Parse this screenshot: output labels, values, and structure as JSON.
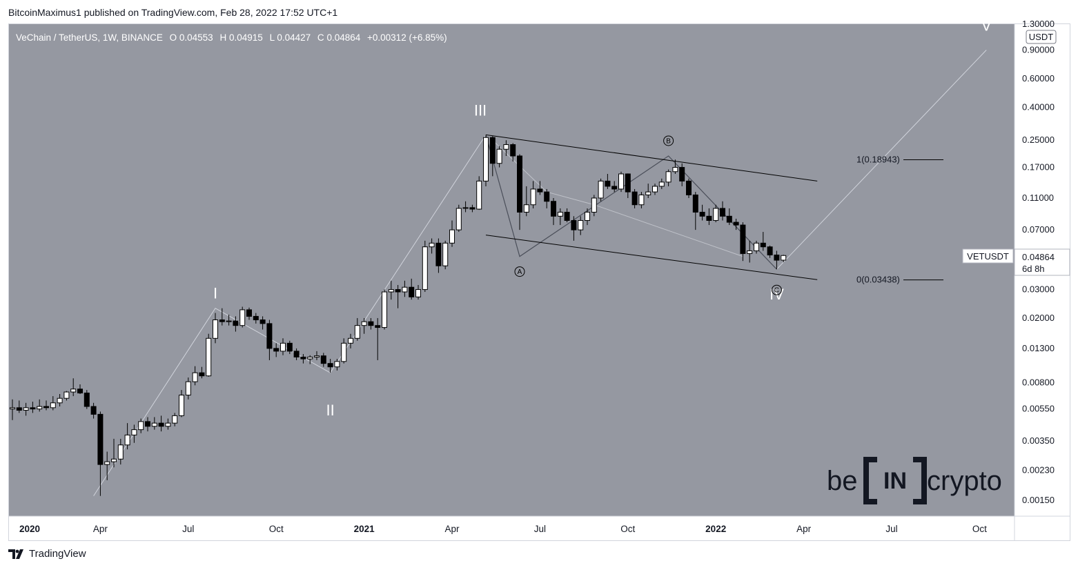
{
  "header": {
    "publisher_line": "BitcoinMaximus1 published on TradingView.com, Feb 28, 2022 17:52 UTC+1"
  },
  "legend": {
    "symbol": "VeChain / TetherUS, 1W, BINANCE",
    "o_label": "O",
    "o_value": "0.04553",
    "h_label": "H",
    "h_value": "0.04915",
    "l_label": "L",
    "l_value": "0.04427",
    "c_label": "C",
    "c_value": "0.04864",
    "change": "+0.00312 (+6.85%)"
  },
  "price_axis": {
    "currency": "USDT",
    "symbol_tag": "VETUSDT",
    "last_price": "0.04864",
    "countdown": "6d 8h"
  },
  "waves": {
    "I": "I",
    "II": "II",
    "III": "III",
    "IV": "IV",
    "V": "V",
    "A": "A",
    "B": "B",
    "C": "C"
  },
  "fib": {
    "level_1": "1(0.18943)",
    "level_0": "0(0.03438)"
  },
  "watermark": {
    "be": "be",
    "in": "IN",
    "crypto": "crypto"
  },
  "footer": {
    "brand": "TradingView"
  },
  "colors": {
    "background": "#9598a1",
    "axis_bg": "#ffffff",
    "bull": "#ffffff",
    "bear": "#000000",
    "grid_text": "#131722"
  },
  "chart_data": {
    "type": "candlestick",
    "title": "VeChain / TetherUS, 1W, BINANCE",
    "y_scale": "log",
    "ylim": [
      0.0012,
      1.3
    ],
    "y_ticks": [
      "1.30000",
      "0.90000",
      "0.60000",
      "0.40000",
      "0.25000",
      "0.17000",
      "0.11000",
      "0.07000",
      "0.04864",
      "0.03000",
      "0.02000",
      "0.01300",
      "0.00800",
      "0.00550",
      "0.00350",
      "0.00230",
      "0.00150"
    ],
    "x_labels": [
      "2020",
      "Apr",
      "Jul",
      "Oct",
      "2021",
      "Apr",
      "Jul",
      "Oct",
      "2022",
      "Apr",
      "Jul",
      "Oct"
    ],
    "x_label_weeks": [
      0,
      13,
      26,
      39,
      52,
      65,
      78,
      91,
      104,
      117,
      130,
      143
    ],
    "candles": [
      {
        "w": 0,
        "o": 0.0055,
        "h": 0.0063,
        "l": 0.0047,
        "c": 0.0056
      },
      {
        "w": 1,
        "o": 0.0056,
        "h": 0.0062,
        "l": 0.0052,
        "c": 0.0054
      },
      {
        "w": 2,
        "o": 0.0054,
        "h": 0.006,
        "l": 0.005,
        "c": 0.0056
      },
      {
        "w": 3,
        "o": 0.0056,
        "h": 0.0061,
        "l": 0.0052,
        "c": 0.0055
      },
      {
        "w": 4,
        "o": 0.0055,
        "h": 0.0063,
        "l": 0.0053,
        "c": 0.0057
      },
      {
        "w": 5,
        "o": 0.0057,
        "h": 0.0062,
        "l": 0.0054,
        "c": 0.0056
      },
      {
        "w": 6,
        "o": 0.0056,
        "h": 0.0066,
        "l": 0.0054,
        "c": 0.006
      },
      {
        "w": 7,
        "o": 0.006,
        "h": 0.0068,
        "l": 0.0057,
        "c": 0.0064
      },
      {
        "w": 8,
        "o": 0.0064,
        "h": 0.0071,
        "l": 0.0062,
        "c": 0.007
      },
      {
        "w": 9,
        "o": 0.007,
        "h": 0.0085,
        "l": 0.0066,
        "c": 0.0073
      },
      {
        "w": 10,
        "o": 0.0073,
        "h": 0.0078,
        "l": 0.0068,
        "c": 0.0069
      },
      {
        "w": 11,
        "o": 0.0069,
        "h": 0.0072,
        "l": 0.0055,
        "c": 0.0057
      },
      {
        "w": 12,
        "o": 0.0057,
        "h": 0.006,
        "l": 0.0048,
        "c": 0.0051
      },
      {
        "w": 13,
        "o": 0.0051,
        "h": 0.0053,
        "l": 0.0016,
        "c": 0.0025
      },
      {
        "w": 14,
        "o": 0.0025,
        "h": 0.003,
        "l": 0.002,
        "c": 0.0026
      },
      {
        "w": 15,
        "o": 0.0026,
        "h": 0.0036,
        "l": 0.0024,
        "c": 0.0027
      },
      {
        "w": 16,
        "o": 0.0027,
        "h": 0.0036,
        "l": 0.0025,
        "c": 0.0033
      },
      {
        "w": 17,
        "o": 0.0033,
        "h": 0.0045,
        "l": 0.0031,
        "c": 0.0038
      },
      {
        "w": 18,
        "o": 0.0038,
        "h": 0.0044,
        "l": 0.0034,
        "c": 0.0041
      },
      {
        "w": 19,
        "o": 0.0041,
        "h": 0.0048,
        "l": 0.0039,
        "c": 0.0046
      },
      {
        "w": 20,
        "o": 0.0046,
        "h": 0.0049,
        "l": 0.004,
        "c": 0.0043
      },
      {
        "w": 21,
        "o": 0.0043,
        "h": 0.0049,
        "l": 0.0041,
        "c": 0.0045
      },
      {
        "w": 22,
        "o": 0.0045,
        "h": 0.005,
        "l": 0.004,
        "c": 0.0043
      },
      {
        "w": 23,
        "o": 0.0043,
        "h": 0.0048,
        "l": 0.0041,
        "c": 0.0045
      },
      {
        "w": 24,
        "o": 0.0045,
        "h": 0.0052,
        "l": 0.0043,
        "c": 0.005
      },
      {
        "w": 25,
        "o": 0.005,
        "h": 0.0072,
        "l": 0.0049,
        "c": 0.0067
      },
      {
        "w": 26,
        "o": 0.0067,
        "h": 0.0086,
        "l": 0.0063,
        "c": 0.0081
      },
      {
        "w": 27,
        "o": 0.0081,
        "h": 0.0101,
        "l": 0.0077,
        "c": 0.0092
      },
      {
        "w": 28,
        "o": 0.0092,
        "h": 0.01,
        "l": 0.0085,
        "c": 0.0088
      },
      {
        "w": 29,
        "o": 0.0088,
        "h": 0.016,
        "l": 0.0087,
        "c": 0.015
      },
      {
        "w": 30,
        "o": 0.015,
        "h": 0.0215,
        "l": 0.014,
        "c": 0.0195
      },
      {
        "w": 31,
        "o": 0.0195,
        "h": 0.023,
        "l": 0.018,
        "c": 0.019
      },
      {
        "w": 32,
        "o": 0.019,
        "h": 0.021,
        "l": 0.018,
        "c": 0.0192
      },
      {
        "w": 33,
        "o": 0.0192,
        "h": 0.0205,
        "l": 0.0165,
        "c": 0.018
      },
      {
        "w": 34,
        "o": 0.018,
        "h": 0.0235,
        "l": 0.0175,
        "c": 0.0225
      },
      {
        "w": 35,
        "o": 0.0225,
        "h": 0.0232,
        "l": 0.0195,
        "c": 0.0205
      },
      {
        "w": 36,
        "o": 0.0205,
        "h": 0.0215,
        "l": 0.0185,
        "c": 0.0195
      },
      {
        "w": 37,
        "o": 0.0195,
        "h": 0.0205,
        "l": 0.017,
        "c": 0.0185
      },
      {
        "w": 38,
        "o": 0.0185,
        "h": 0.0195,
        "l": 0.011,
        "c": 0.013
      },
      {
        "w": 39,
        "o": 0.013,
        "h": 0.014,
        "l": 0.0115,
        "c": 0.0125
      },
      {
        "w": 40,
        "o": 0.0125,
        "h": 0.015,
        "l": 0.0118,
        "c": 0.014
      },
      {
        "w": 41,
        "o": 0.014,
        "h": 0.0145,
        "l": 0.012,
        "c": 0.0125
      },
      {
        "w": 42,
        "o": 0.0125,
        "h": 0.013,
        "l": 0.011,
        "c": 0.0115
      },
      {
        "w": 43,
        "o": 0.0115,
        "h": 0.012,
        "l": 0.0105,
        "c": 0.0112
      },
      {
        "w": 44,
        "o": 0.0112,
        "h": 0.0118,
        "l": 0.0104,
        "c": 0.0115
      },
      {
        "w": 45,
        "o": 0.0115,
        "h": 0.0125,
        "l": 0.011,
        "c": 0.0117
      },
      {
        "w": 46,
        "o": 0.0117,
        "h": 0.0122,
        "l": 0.01,
        "c": 0.0105
      },
      {
        "w": 47,
        "o": 0.0105,
        "h": 0.0112,
        "l": 0.0092,
        "c": 0.01
      },
      {
        "w": 48,
        "o": 0.01,
        "h": 0.0112,
        "l": 0.0095,
        "c": 0.0108
      },
      {
        "w": 49,
        "o": 0.0108,
        "h": 0.015,
        "l": 0.0105,
        "c": 0.014
      },
      {
        "w": 50,
        "o": 0.014,
        "h": 0.016,
        "l": 0.013,
        "c": 0.015
      },
      {
        "w": 51,
        "o": 0.015,
        "h": 0.02,
        "l": 0.0145,
        "c": 0.018
      },
      {
        "w": 52,
        "o": 0.018,
        "h": 0.02,
        "l": 0.016,
        "c": 0.019
      },
      {
        "w": 53,
        "o": 0.019,
        "h": 0.02,
        "l": 0.017,
        "c": 0.018
      },
      {
        "w": 54,
        "o": 0.018,
        "h": 0.02,
        "l": 0.011,
        "c": 0.0175
      },
      {
        "w": 55,
        "o": 0.0175,
        "h": 0.03,
        "l": 0.017,
        "c": 0.029
      },
      {
        "w": 56,
        "o": 0.029,
        "h": 0.034,
        "l": 0.026,
        "c": 0.03
      },
      {
        "w": 57,
        "o": 0.03,
        "h": 0.032,
        "l": 0.023,
        "c": 0.029
      },
      {
        "w": 58,
        "o": 0.029,
        "h": 0.034,
        "l": 0.027,
        "c": 0.031
      },
      {
        "w": 59,
        "o": 0.031,
        "h": 0.035,
        "l": 0.026,
        "c": 0.027
      },
      {
        "w": 60,
        "o": 0.027,
        "h": 0.032,
        "l": 0.026,
        "c": 0.03
      },
      {
        "w": 61,
        "o": 0.03,
        "h": 0.06,
        "l": 0.029,
        "c": 0.055
      },
      {
        "w": 62,
        "o": 0.055,
        "h": 0.062,
        "l": 0.05,
        "c": 0.058
      },
      {
        "w": 63,
        "o": 0.058,
        "h": 0.062,
        "l": 0.038,
        "c": 0.042
      },
      {
        "w": 64,
        "o": 0.042,
        "h": 0.06,
        "l": 0.04,
        "c": 0.058
      },
      {
        "w": 65,
        "o": 0.058,
        "h": 0.08,
        "l": 0.055,
        "c": 0.07
      },
      {
        "w": 66,
        "o": 0.07,
        "h": 0.1,
        "l": 0.068,
        "c": 0.095
      },
      {
        "w": 67,
        "o": 0.095,
        "h": 0.105,
        "l": 0.09,
        "c": 0.096
      },
      {
        "w": 68,
        "o": 0.096,
        "h": 0.1,
        "l": 0.09,
        "c": 0.094
      },
      {
        "w": 69,
        "o": 0.094,
        "h": 0.15,
        "l": 0.093,
        "c": 0.14
      },
      {
        "w": 70,
        "o": 0.14,
        "h": 0.27,
        "l": 0.13,
        "c": 0.26
      },
      {
        "w": 71,
        "o": 0.26,
        "h": 0.265,
        "l": 0.15,
        "c": 0.18
      },
      {
        "w": 72,
        "o": 0.18,
        "h": 0.23,
        "l": 0.17,
        "c": 0.22
      },
      {
        "w": 73,
        "o": 0.22,
        "h": 0.25,
        "l": 0.2,
        "c": 0.235
      },
      {
        "w": 74,
        "o": 0.235,
        "h": 0.24,
        "l": 0.185,
        "c": 0.2
      },
      {
        "w": 75,
        "o": 0.2,
        "h": 0.205,
        "l": 0.07,
        "c": 0.09
      },
      {
        "w": 76,
        "o": 0.09,
        "h": 0.13,
        "l": 0.085,
        "c": 0.1
      },
      {
        "w": 77,
        "o": 0.1,
        "h": 0.14,
        "l": 0.095,
        "c": 0.125
      },
      {
        "w": 78,
        "o": 0.125,
        "h": 0.14,
        "l": 0.115,
        "c": 0.12
      },
      {
        "w": 79,
        "o": 0.12,
        "h": 0.125,
        "l": 0.095,
        "c": 0.105
      },
      {
        "w": 80,
        "o": 0.105,
        "h": 0.11,
        "l": 0.075,
        "c": 0.085
      },
      {
        "w": 81,
        "o": 0.085,
        "h": 0.095,
        "l": 0.075,
        "c": 0.09
      },
      {
        "w": 82,
        "o": 0.09,
        "h": 0.095,
        "l": 0.078,
        "c": 0.08
      },
      {
        "w": 83,
        "o": 0.08,
        "h": 0.085,
        "l": 0.06,
        "c": 0.07
      },
      {
        "w": 84,
        "o": 0.07,
        "h": 0.085,
        "l": 0.065,
        "c": 0.08
      },
      {
        "w": 85,
        "o": 0.08,
        "h": 0.095,
        "l": 0.075,
        "c": 0.09
      },
      {
        "w": 86,
        "o": 0.09,
        "h": 0.115,
        "l": 0.085,
        "c": 0.11
      },
      {
        "w": 87,
        "o": 0.11,
        "h": 0.145,
        "l": 0.105,
        "c": 0.14
      },
      {
        "w": 88,
        "o": 0.14,
        "h": 0.155,
        "l": 0.125,
        "c": 0.13
      },
      {
        "w": 89,
        "o": 0.13,
        "h": 0.14,
        "l": 0.12,
        "c": 0.125
      },
      {
        "w": 90,
        "o": 0.125,
        "h": 0.16,
        "l": 0.12,
        "c": 0.155
      },
      {
        "w": 91,
        "o": 0.155,
        "h": 0.156,
        "l": 0.11,
        "c": 0.12
      },
      {
        "w": 92,
        "o": 0.12,
        "h": 0.125,
        "l": 0.095,
        "c": 0.1
      },
      {
        "w": 93,
        "o": 0.1,
        "h": 0.12,
        "l": 0.095,
        "c": 0.115
      },
      {
        "w": 94,
        "o": 0.115,
        "h": 0.135,
        "l": 0.11,
        "c": 0.12
      },
      {
        "w": 95,
        "o": 0.12,
        "h": 0.135,
        "l": 0.115,
        "c": 0.13
      },
      {
        "w": 96,
        "o": 0.13,
        "h": 0.145,
        "l": 0.125,
        "c": 0.138
      },
      {
        "w": 97,
        "o": 0.138,
        "h": 0.165,
        "l": 0.13,
        "c": 0.16
      },
      {
        "w": 98,
        "o": 0.16,
        "h": 0.19,
        "l": 0.155,
        "c": 0.17
      },
      {
        "w": 99,
        "o": 0.17,
        "h": 0.18,
        "l": 0.13,
        "c": 0.14
      },
      {
        "w": 100,
        "o": 0.14,
        "h": 0.145,
        "l": 0.11,
        "c": 0.115
      },
      {
        "w": 101,
        "o": 0.115,
        "h": 0.12,
        "l": 0.07,
        "c": 0.09
      },
      {
        "w": 102,
        "o": 0.09,
        "h": 0.1,
        "l": 0.08,
        "c": 0.085
      },
      {
        "w": 103,
        "o": 0.085,
        "h": 0.095,
        "l": 0.075,
        "c": 0.08
      },
      {
        "w": 104,
        "o": 0.08,
        "h": 0.1,
        "l": 0.078,
        "c": 0.095
      },
      {
        "w": 105,
        "o": 0.095,
        "h": 0.105,
        "l": 0.08,
        "c": 0.085
      },
      {
        "w": 106,
        "o": 0.085,
        "h": 0.095,
        "l": 0.075,
        "c": 0.078
      },
      {
        "w": 107,
        "o": 0.078,
        "h": 0.082,
        "l": 0.07,
        "c": 0.075
      },
      {
        "w": 108,
        "o": 0.075,
        "h": 0.078,
        "l": 0.045,
        "c": 0.05
      },
      {
        "w": 109,
        "o": 0.05,
        "h": 0.06,
        "l": 0.044,
        "c": 0.052
      },
      {
        "w": 110,
        "o": 0.052,
        "h": 0.06,
        "l": 0.05,
        "c": 0.058
      },
      {
        "w": 111,
        "o": 0.058,
        "h": 0.068,
        "l": 0.052,
        "c": 0.055
      },
      {
        "w": 112,
        "o": 0.055,
        "h": 0.056,
        "l": 0.047,
        "c": 0.049
      },
      {
        "w": 113,
        "o": 0.049,
        "h": 0.052,
        "l": 0.04,
        "c": 0.0455
      },
      {
        "w": 114,
        "o": 0.04553,
        "h": 0.04915,
        "l": 0.04427,
        "c": 0.04864
      }
    ],
    "wave_points": {
      "I": {
        "w": 30,
        "p": 0.023
      },
      "II": {
        "w": 47,
        "p": 0.0092
      },
      "III": {
        "w": 70,
        "p": 0.27
      },
      "IV": {
        "w": 113,
        "p": 0.04
      },
      "V": {
        "w": 144,
        "p": 0.9
      },
      "A": {
        "w": 75,
        "p": 0.048
      },
      "B": {
        "w": 97,
        "p": 0.2
      },
      "C": {
        "w": 113,
        "p": 0.04
      }
    },
    "channel": {
      "upper": [
        {
          "w": 70,
          "p": 0.27
        },
        {
          "w": 119,
          "p": 0.14
        }
      ],
      "lower": [
        {
          "w": 70,
          "p": 0.065
        },
        {
          "w": 119,
          "p": 0.0345
        }
      ]
    },
    "fib_levels": [
      {
        "label": "1(0.18943)",
        "p": 0.18943,
        "w_start": 120,
        "w_end": 130
      },
      {
        "label": "0(0.03438)",
        "p": 0.03438,
        "w_start": 120,
        "w_end": 130
      }
    ]
  }
}
